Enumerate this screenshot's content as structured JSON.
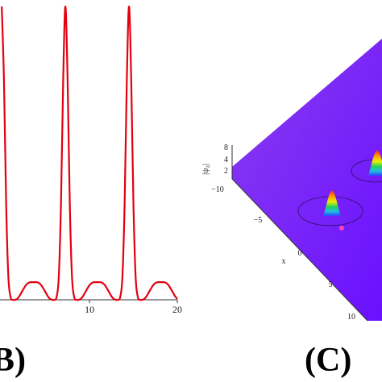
{
  "chart_data": {
    "type": "line",
    "x": [
      0,
      0.25,
      0.5,
      0.75,
      1,
      1.25,
      1.5,
      1.75,
      2,
      2.25,
      2.5,
      2.75,
      3,
      3.25,
      3.5,
      3.75,
      4,
      4.25,
      4.5,
      4.75,
      5,
      5.25,
      5.5,
      5.75,
      6,
      6.25,
      6.5,
      6.75,
      7,
      7.25,
      7.5,
      7.75,
      8,
      8.25,
      8.5,
      8.75,
      9,
      9.25,
      9.5,
      9.75,
      10,
      10.25,
      10.5,
      10.75,
      11,
      11.25,
      11.5,
      11.75,
      12,
      12.25,
      12.5,
      12.75,
      13,
      13.25,
      13.5,
      13.75,
      14,
      14.25,
      14.5,
      14.75,
      15,
      15.25,
      15.5,
      15.75,
      16,
      16.25,
      16.5,
      16.75,
      17,
      17.25,
      17.5,
      17.75,
      18,
      18.25,
      18.5,
      18.75,
      19,
      19.25,
      19.5,
      19.75,
      20
    ],
    "series": [
      {
        "color": "#e3000f",
        "values": [
          1,
          0.75,
          0.33,
          0.08,
          0.01,
          0,
          0,
          0.003,
          0.012,
          0.025,
          0.038,
          0.05,
          0.057,
          0.06,
          0.06,
          0.06,
          0.06,
          0.057,
          0.05,
          0.038,
          0.025,
          0.012,
          0.003,
          0,
          0,
          0.01,
          0.08,
          0.33,
          0.75,
          1,
          0.75,
          0.33,
          0.08,
          0.01,
          0,
          0,
          0.003,
          0.012,
          0.025,
          0.038,
          0.05,
          0.057,
          0.06,
          0.06,
          0.06,
          0.06,
          0.057,
          0.05,
          0.038,
          0.025,
          0.012,
          0.003,
          0,
          0,
          0.01,
          0.08,
          0.33,
          0.75,
          1,
          0.75,
          0.33,
          0.08,
          0.01,
          0,
          0,
          0.003,
          0.012,
          0.025,
          0.038,
          0.05,
          0.057,
          0.06,
          0.06,
          0.06,
          0.06,
          0.057,
          0.05,
          0.038,
          0.025,
          0.012,
          0.003
        ]
      }
    ],
    "xlim": [
      -0.2,
      20
    ],
    "xticks": [
      10,
      20
    ],
    "ylim": [
      0,
      1
    ]
  },
  "panel_labels": [
    "(B)",
    "(C)"
  ],
  "panel_c": {
    "z_label": "|ψ₂|",
    "z_ticks": [
      "8",
      "4",
      "2"
    ],
    "x_ticks": [
      "−10",
      "−5",
      "0",
      "5",
      "10"
    ],
    "x_label": "x"
  }
}
